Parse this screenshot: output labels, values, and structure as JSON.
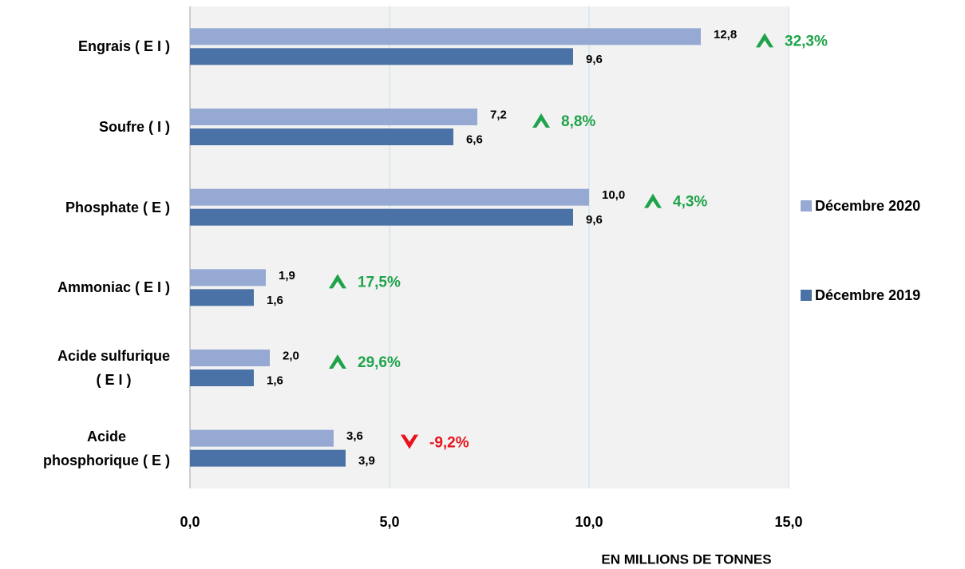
{
  "chart_data": {
    "type": "hbar",
    "categories": [
      "Engrais ( E I )",
      "Soufre ( I )",
      "Phosphate ( E )",
      "Ammoniac ( E I )",
      "Acide sulfurique\n( E I )",
      "Acide\nphosphorique ( E )"
    ],
    "series": [
      {
        "name": "Décembre 2020",
        "color": "#95a9d3",
        "values": [
          12.8,
          7.2,
          10.0,
          1.9,
          2.0,
          3.6
        ],
        "value_labels": [
          "12,8",
          "7,2",
          "10,0",
          "1,9",
          "2,0",
          "3,6"
        ]
      },
      {
        "name": "Décembre 2019",
        "color": "#4a72a6",
        "values": [
          9.6,
          6.6,
          9.6,
          1.6,
          1.6,
          3.9
        ],
        "value_labels": [
          "9,6",
          "6,6",
          "9,6",
          "1,6",
          "1,6",
          "3,9"
        ]
      }
    ],
    "changes": {
      "values": [
        32.3,
        8.8,
        4.3,
        17.5,
        29.6,
        -9.2
      ],
      "value_labels": [
        "32,3%",
        "8,8%",
        "4,3%",
        "17,5%",
        "29,6%",
        "-9,2%"
      ],
      "up_color": "#1fa34a",
      "down_color": "#e8141c"
    },
    "xlabel": "EN MILLIONS DE TONNES",
    "xlim": [
      0,
      15
    ],
    "xticks": [
      {
        "value": 0,
        "label": "0,0"
      },
      {
        "value": 5,
        "label": "5,0"
      },
      {
        "value": 10,
        "label": "10,0"
      },
      {
        "value": 15,
        "label": "15,0"
      }
    ],
    "grid": true,
    "legend": "right"
  }
}
